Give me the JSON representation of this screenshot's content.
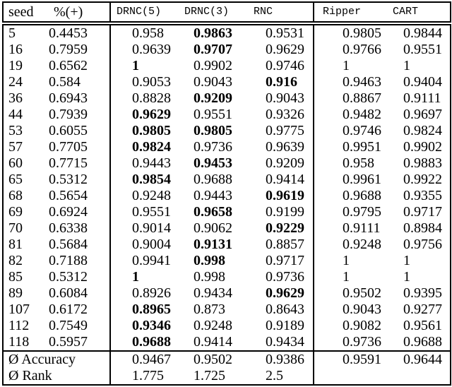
{
  "page": {
    "background": "#ffffff",
    "text_color": "#000000"
  },
  "table": {
    "columns": [
      {
        "key": "seed",
        "label": "seed",
        "style": "serif"
      },
      {
        "key": "pctpos",
        "label": "%(+)",
        "style": "serif"
      },
      {
        "key": "drnc5",
        "label": "DRNC(5)",
        "style": "mono"
      },
      {
        "key": "drnc3",
        "label": "DRNC(3)",
        "style": "mono"
      },
      {
        "key": "rnc",
        "label": "RNC",
        "style": "mono"
      },
      {
        "key": "ripper",
        "label": "Ripper",
        "style": "mono"
      },
      {
        "key": "cart",
        "label": "CART",
        "style": "mono"
      }
    ],
    "rows": [
      {
        "seed": "5",
        "pct": "0.4453",
        "values": [
          {
            "v": "0.958",
            "b": false
          },
          {
            "v": "0.9863",
            "b": true
          },
          {
            "v": "0.9531",
            "b": false
          },
          {
            "v": "0.9805",
            "b": false
          },
          {
            "v": "0.9844",
            "b": false
          }
        ]
      },
      {
        "seed": "16",
        "pct": "0.7959",
        "values": [
          {
            "v": "0.9639",
            "b": false
          },
          {
            "v": "0.9707",
            "b": true
          },
          {
            "v": "0.9629",
            "b": false
          },
          {
            "v": "0.9766",
            "b": false
          },
          {
            "v": "0.9551",
            "b": false
          }
        ]
      },
      {
        "seed": "19",
        "pct": "0.6562",
        "values": [
          {
            "v": "1",
            "b": true
          },
          {
            "v": "0.9902",
            "b": false
          },
          {
            "v": "0.9746",
            "b": false
          },
          {
            "v": "1",
            "b": false
          },
          {
            "v": "1",
            "b": false
          }
        ]
      },
      {
        "seed": "24",
        "pct": "0.584",
        "values": [
          {
            "v": "0.9053",
            "b": false
          },
          {
            "v": "0.9043",
            "b": false
          },
          {
            "v": "0.916",
            "b": true
          },
          {
            "v": "0.9463",
            "b": false
          },
          {
            "v": "0.9404",
            "b": false
          }
        ]
      },
      {
        "seed": "36",
        "pct": "0.6943",
        "values": [
          {
            "v": "0.8828",
            "b": false
          },
          {
            "v": "0.9209",
            "b": true
          },
          {
            "v": "0.9043",
            "b": false
          },
          {
            "v": "0.8867",
            "b": false
          },
          {
            "v": "0.9111",
            "b": false
          }
        ]
      },
      {
        "seed": "44",
        "pct": "0.7939",
        "values": [
          {
            "v": "0.9629",
            "b": true
          },
          {
            "v": "0.9551",
            "b": false
          },
          {
            "v": "0.9326",
            "b": false
          },
          {
            "v": "0.9482",
            "b": false
          },
          {
            "v": "0.9697",
            "b": false
          }
        ]
      },
      {
        "seed": "53",
        "pct": "0.6055",
        "values": [
          {
            "v": "0.9805",
            "b": true
          },
          {
            "v": "0.9805",
            "b": true
          },
          {
            "v": "0.9775",
            "b": false
          },
          {
            "v": "0.9746",
            "b": false
          },
          {
            "v": "0.9824",
            "b": false
          }
        ]
      },
      {
        "seed": "57",
        "pct": "0.7705",
        "values": [
          {
            "v": "0.9824",
            "b": true
          },
          {
            "v": "0.9736",
            "b": false
          },
          {
            "v": "0.9639",
            "b": false
          },
          {
            "v": "0.9951",
            "b": false
          },
          {
            "v": "0.9902",
            "b": false
          }
        ]
      },
      {
        "seed": "60",
        "pct": "0.7715",
        "values": [
          {
            "v": "0.9443",
            "b": false
          },
          {
            "v": "0.9453",
            "b": true
          },
          {
            "v": "0.9209",
            "b": false
          },
          {
            "v": "0.958",
            "b": false
          },
          {
            "v": "0.9883",
            "b": false
          }
        ]
      },
      {
        "seed": "65",
        "pct": "0.5312",
        "values": [
          {
            "v": "0.9854",
            "b": true
          },
          {
            "v": "0.9688",
            "b": false
          },
          {
            "v": "0.9414",
            "b": false
          },
          {
            "v": "0.9961",
            "b": false
          },
          {
            "v": "0.9922",
            "b": false
          }
        ]
      },
      {
        "seed": "68",
        "pct": "0.5654",
        "values": [
          {
            "v": "0.9248",
            "b": false
          },
          {
            "v": "0.9443",
            "b": false
          },
          {
            "v": "0.9619",
            "b": true
          },
          {
            "v": "0.9688",
            "b": false
          },
          {
            "v": "0.9355",
            "b": false
          }
        ]
      },
      {
        "seed": "69",
        "pct": "0.6924",
        "values": [
          {
            "v": "0.9551",
            "b": false
          },
          {
            "v": "0.9658",
            "b": true
          },
          {
            "v": "0.9199",
            "b": false
          },
          {
            "v": "0.9795",
            "b": false
          },
          {
            "v": "0.9717",
            "b": false
          }
        ]
      },
      {
        "seed": "70",
        "pct": "0.6338",
        "values": [
          {
            "v": "0.9014",
            "b": false
          },
          {
            "v": "0.9062",
            "b": false
          },
          {
            "v": "0.9229",
            "b": true
          },
          {
            "v": "0.9111",
            "b": false
          },
          {
            "v": "0.8984",
            "b": false
          }
        ]
      },
      {
        "seed": "81",
        "pct": "0.5684",
        "values": [
          {
            "v": "0.9004",
            "b": false
          },
          {
            "v": "0.9131",
            "b": true
          },
          {
            "v": "0.8857",
            "b": false
          },
          {
            "v": "0.9248",
            "b": false
          },
          {
            "v": "0.9756",
            "b": false
          }
        ]
      },
      {
        "seed": "82",
        "pct": "0.7188",
        "values": [
          {
            "v": "0.9941",
            "b": false
          },
          {
            "v": "0.998",
            "b": true
          },
          {
            "v": "0.9717",
            "b": false
          },
          {
            "v": "1",
            "b": false
          },
          {
            "v": "1",
            "b": false
          }
        ]
      },
      {
        "seed": "85",
        "pct": "0.5312",
        "values": [
          {
            "v": "1",
            "b": true
          },
          {
            "v": "0.998",
            "b": false
          },
          {
            "v": "0.9736",
            "b": false
          },
          {
            "v": "1",
            "b": false
          },
          {
            "v": "1",
            "b": false
          }
        ]
      },
      {
        "seed": "89",
        "pct": "0.6084",
        "values": [
          {
            "v": "0.8926",
            "b": false
          },
          {
            "v": "0.9434",
            "b": false
          },
          {
            "v": "0.9629",
            "b": true
          },
          {
            "v": "0.9502",
            "b": false
          },
          {
            "v": "0.9395",
            "b": false
          }
        ]
      },
      {
        "seed": "107",
        "pct": "0.6172",
        "values": [
          {
            "v": "0.8965",
            "b": true
          },
          {
            "v": "0.873",
            "b": false
          },
          {
            "v": "0.8643",
            "b": false
          },
          {
            "v": "0.9043",
            "b": false
          },
          {
            "v": "0.9277",
            "b": false
          }
        ]
      },
      {
        "seed": "112",
        "pct": "0.7549",
        "values": [
          {
            "v": "0.9346",
            "b": true
          },
          {
            "v": "0.9248",
            "b": false
          },
          {
            "v": "0.9189",
            "b": false
          },
          {
            "v": "0.9082",
            "b": false
          },
          {
            "v": "0.9561",
            "b": false
          }
        ]
      },
      {
        "seed": "118",
        "pct": "0.5957",
        "values": [
          {
            "v": "0.9688",
            "b": true
          },
          {
            "v": "0.9414",
            "b": false
          },
          {
            "v": "0.9434",
            "b": false
          },
          {
            "v": "0.9736",
            "b": false
          },
          {
            "v": "0.9688",
            "b": false
          }
        ]
      }
    ],
    "summary": [
      {
        "label": "Ø Accuracy",
        "values": [
          {
            "v": "0.9467",
            "b": false
          },
          {
            "v": "0.9502",
            "b": false
          },
          {
            "v": "0.9386",
            "b": false
          },
          {
            "v": "0.9591",
            "b": false
          },
          {
            "v": "0.9644",
            "b": false
          }
        ]
      },
      {
        "label": "Ø Rank",
        "values": [
          {
            "v": "1.775",
            "b": false
          },
          {
            "v": "1.725",
            "b": false
          },
          {
            "v": "2.5",
            "b": false
          },
          {
            "v": "",
            "b": false
          },
          {
            "v": "",
            "b": false
          }
        ]
      }
    ]
  }
}
